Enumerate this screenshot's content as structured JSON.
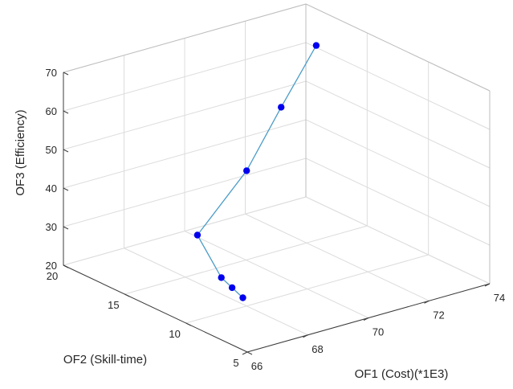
{
  "chart_data": {
    "type": "scatter",
    "subtype": "3d-line-with-markers",
    "title": "",
    "xlabel": "OF1 (Cost)(*1E3)",
    "ylabel": "OF2 (Skill-time)",
    "zlabel": "OF3 (Efficiency)",
    "xlim": [
      66,
      74
    ],
    "ylim": [
      5,
      20
    ],
    "zlim": [
      20,
      70
    ],
    "xticks": [
      "66",
      "68",
      "70",
      "72",
      "74"
    ],
    "yticks": [
      "5",
      "10",
      "15",
      "20"
    ],
    "zticks": [
      "20",
      "30",
      "40",
      "50",
      "60",
      "70"
    ],
    "grid": true,
    "series": [
      {
        "x": [
          68.2,
          68.25,
          68.3,
          68.4,
          69.7,
          71.0,
          72.4
        ],
        "y": [
          10.8,
          11.8,
          12.8,
          15.0,
          14.2,
          14.6,
          15.2
        ],
        "z": [
          20.5,
          21.5,
          22.5,
          30.0,
          45.0,
          58.0,
          70.0
        ]
      }
    ],
    "line_color": "#4b9cc8",
    "marker_color": "#0000ee"
  }
}
